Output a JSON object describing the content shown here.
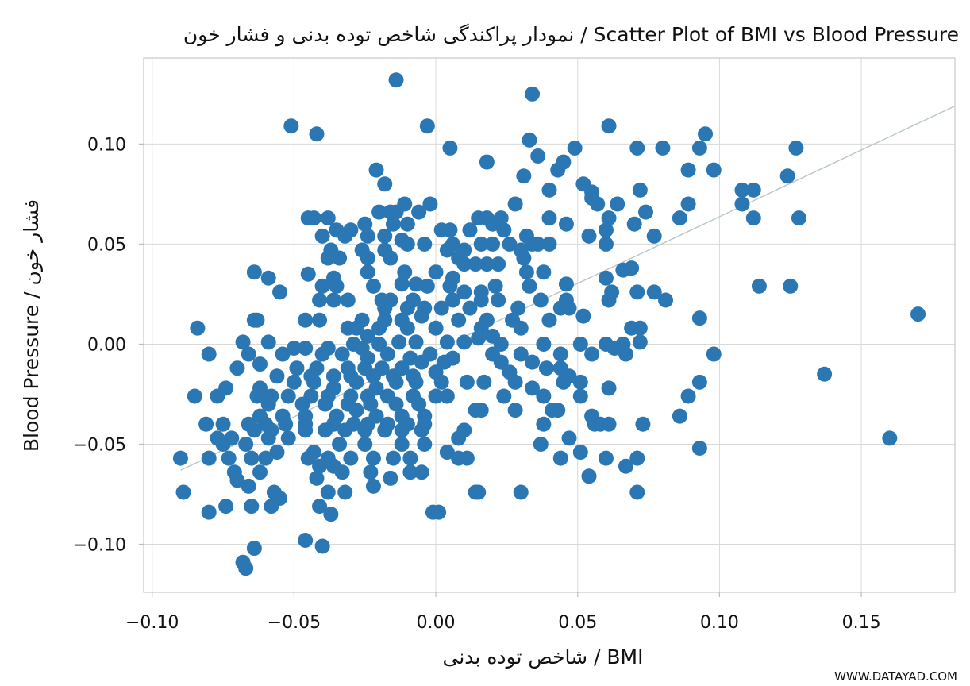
{
  "chart_data": {
    "type": "scatter",
    "title": "نمودار پراکندگی شاخص توده بدنی و فشار خون / Scatter Plot of BMI vs Blood Pressure",
    "xlabel": "شاخص توده بدنی / BMI",
    "ylabel": "Blood Pressure / فشار خون",
    "xlim": [
      -0.103,
      0.183
    ],
    "ylim": [
      -0.124,
      0.143
    ],
    "x_ticks": [
      -0.1,
      -0.05,
      0.0,
      0.05,
      0.1,
      0.15
    ],
    "x_tick_labels": [
      "−0.10",
      "−0.05",
      "0.00",
      "0.05",
      "0.10",
      "0.15"
    ],
    "y_ticks": [
      -0.1,
      -0.05,
      0.0,
      0.05,
      0.1
    ],
    "y_tick_labels": [
      "−0.10",
      "−0.05",
      "0.00",
      "0.05",
      "0.10"
    ],
    "grid": true,
    "marker_color": "#2a77b4",
    "trend_color": "#b9c7c6",
    "trend_line": {
      "x": [
        -0.09,
        0.183
      ],
      "y": [
        -0.063,
        0.119
      ]
    },
    "points": [
      [
        -0.014,
        0.132
      ],
      [
        0.034,
        0.125
      ],
      [
        -0.051,
        0.109
      ],
      [
        -0.042,
        0.105
      ],
      [
        -0.003,
        0.109
      ],
      [
        0.061,
        0.109
      ],
      [
        0.095,
        0.105
      ],
      [
        0.033,
        0.102
      ],
      [
        0.005,
        0.098
      ],
      [
        0.036,
        0.094
      ],
      [
        0.049,
        0.098
      ],
      [
        0.071,
        0.098
      ],
      [
        0.08,
        0.098
      ],
      [
        0.093,
        0.098
      ],
      [
        0.127,
        0.098
      ],
      [
        0.018,
        0.091
      ],
      [
        0.043,
        0.087
      ],
      [
        0.045,
        0.091
      ],
      [
        0.031,
        0.084
      ],
      [
        -0.021,
        0.087
      ],
      [
        0.089,
        0.087
      ],
      [
        0.098,
        0.087
      ],
      [
        0.124,
        0.084
      ],
      [
        -0.018,
        0.08
      ],
      [
        0.052,
        0.08
      ],
      [
        0.055,
        0.076
      ],
      [
        0.04,
        0.077
      ],
      [
        0.072,
        0.077
      ],
      [
        0.108,
        0.077
      ],
      [
        0.112,
        0.077
      ],
      [
        0.028,
        0.07
      ],
      [
        0.057,
        0.07
      ],
      [
        0.055,
        0.073
      ],
      [
        0.064,
        0.07
      ],
      [
        0.089,
        0.07
      ],
      [
        0.108,
        0.07
      ],
      [
        -0.016,
        0.066
      ],
      [
        -0.011,
        0.07
      ],
      [
        -0.002,
        0.07
      ],
      [
        0.04,
        0.063
      ],
      [
        0.061,
        0.063
      ],
      [
        0.074,
        0.066
      ],
      [
        0.086,
        0.063
      ],
      [
        0.112,
        0.063
      ],
      [
        0.128,
        0.063
      ],
      [
        -0.043,
        0.063
      ],
      [
        -0.045,
        0.063
      ],
      [
        -0.038,
        0.063
      ],
      [
        -0.02,
        0.066
      ],
      [
        -0.014,
        0.066
      ],
      [
        -0.006,
        0.066
      ],
      [
        0.015,
        0.063
      ],
      [
        0.018,
        0.063
      ],
      [
        0.023,
        0.063
      ],
      [
        -0.035,
        0.057
      ],
      [
        -0.03,
        0.057
      ],
      [
        -0.025,
        0.06
      ],
      [
        -0.015,
        0.06
      ],
      [
        -0.01,
        0.06
      ],
      [
        0.002,
        0.057
      ],
      [
        0.005,
        0.057
      ],
      [
        0.012,
        0.057
      ],
      [
        0.02,
        0.06
      ],
      [
        0.024,
        0.057
      ],
      [
        0.046,
        0.06
      ],
      [
        0.07,
        0.06
      ],
      [
        0.06,
        0.057
      ],
      [
        -0.04,
        0.054
      ],
      [
        -0.032,
        0.054
      ],
      [
        -0.024,
        0.054
      ],
      [
        -0.018,
        0.054
      ],
      [
        -0.012,
        0.052
      ],
      [
        -0.004,
        0.05
      ],
      [
        0.006,
        0.05
      ],
      [
        0.016,
        0.05
      ],
      [
        0.026,
        0.05
      ],
      [
        0.032,
        0.054
      ],
      [
        0.036,
        0.05
      ],
      [
        0.04,
        0.05
      ],
      [
        0.054,
        0.054
      ],
      [
        0.06,
        0.05
      ],
      [
        0.077,
        0.054
      ],
      [
        -0.037,
        0.047
      ],
      [
        -0.026,
        0.047
      ],
      [
        -0.018,
        0.047
      ],
      [
        -0.01,
        0.05
      ],
      [
        0.004,
        0.047
      ],
      [
        0.01,
        0.047
      ],
      [
        0.02,
        0.05
      ],
      [
        0.03,
        0.047
      ],
      [
        0.034,
        0.05
      ],
      [
        -0.038,
        0.043
      ],
      [
        -0.034,
        0.043
      ],
      [
        -0.024,
        0.043
      ],
      [
        -0.016,
        0.043
      ],
      [
        0.008,
        0.043
      ],
      [
        0.014,
        0.04
      ],
      [
        0.018,
        0.04
      ],
      [
        0.031,
        0.043
      ],
      [
        -0.064,
        0.036
      ],
      [
        -0.059,
        0.033
      ],
      [
        -0.045,
        0.035
      ],
      [
        -0.036,
        0.033
      ],
      [
        -0.024,
        0.036
      ],
      [
        -0.011,
        0.036
      ],
      [
        0.0,
        0.036
      ],
      [
        0.006,
        0.033
      ],
      [
        0.01,
        0.04
      ],
      [
        0.022,
        0.04
      ],
      [
        0.032,
        0.036
      ],
      [
        0.038,
        0.036
      ],
      [
        0.06,
        0.033
      ],
      [
        0.066,
        0.037
      ],
      [
        0.069,
        0.038
      ],
      [
        -0.055,
        0.026
      ],
      [
        -0.04,
        0.029
      ],
      [
        -0.035,
        0.029
      ],
      [
        -0.022,
        0.029
      ],
      [
        -0.012,
        0.03
      ],
      [
        -0.007,
        0.03
      ],
      [
        -0.003,
        0.029
      ],
      [
        0.005,
        0.029
      ],
      [
        0.01,
        0.026
      ],
      [
        0.016,
        0.026
      ],
      [
        0.021,
        0.029
      ],
      [
        0.033,
        0.029
      ],
      [
        0.046,
        0.03
      ],
      [
        0.062,
        0.026
      ],
      [
        0.071,
        0.026
      ],
      [
        0.114,
        0.029
      ],
      [
        0.125,
        0.029
      ],
      [
        -0.041,
        0.022
      ],
      [
        -0.036,
        0.022
      ],
      [
        -0.031,
        0.022
      ],
      [
        -0.019,
        0.022
      ],
      [
        -0.016,
        0.022
      ],
      [
        -0.008,
        0.022
      ],
      [
        0.006,
        0.022
      ],
      [
        0.016,
        0.022
      ],
      [
        0.022,
        0.022
      ],
      [
        0.037,
        0.022
      ],
      [
        0.046,
        0.022
      ],
      [
        0.061,
        0.022
      ],
      [
        0.077,
        0.026
      ],
      [
        0.081,
        0.022
      ],
      [
        -0.01,
        0.018
      ],
      [
        -0.004,
        0.018
      ],
      [
        0.002,
        0.018
      ],
      [
        0.012,
        0.018
      ],
      [
        0.029,
        0.018
      ],
      [
        0.044,
        0.018
      ],
      [
        0.047,
        0.018
      ],
      [
        -0.018,
        0.018
      ],
      [
        -0.064,
        0.012
      ],
      [
        -0.063,
        0.012
      ],
      [
        -0.046,
        0.012
      ],
      [
        -0.041,
        0.012
      ],
      [
        -0.026,
        0.012
      ],
      [
        -0.018,
        0.012
      ],
      [
        -0.012,
        0.012
      ],
      [
        -0.005,
        0.014
      ],
      [
        0.008,
        0.012
      ],
      [
        0.018,
        0.012
      ],
      [
        0.027,
        0.012
      ],
      [
        0.04,
        0.012
      ],
      [
        0.052,
        0.014
      ],
      [
        0.093,
        0.013
      ],
      [
        0.17,
        0.015
      ],
      [
        -0.084,
        0.008
      ],
      [
        -0.031,
        0.008
      ],
      [
        -0.028,
        0.008
      ],
      [
        -0.02,
        0.008
      ],
      [
        -0.01,
        0.008
      ],
      [
        0.0,
        0.008
      ],
      [
        0.016,
        0.008
      ],
      [
        0.03,
        0.008
      ],
      [
        0.069,
        0.008
      ],
      [
        0.072,
        0.008
      ],
      [
        -0.024,
        0.004
      ],
      [
        0.02,
        0.004
      ],
      [
        -0.068,
        0.001
      ],
      [
        -0.059,
        0.001
      ],
      [
        -0.05,
        -0.002
      ],
      [
        -0.046,
        -0.002
      ],
      [
        -0.038,
        -0.002
      ],
      [
        -0.029,
        0.0
      ],
      [
        -0.026,
        -0.002
      ],
      [
        -0.02,
        0.0
      ],
      [
        -0.013,
        0.001
      ],
      [
        -0.007,
        0.001
      ],
      [
        0.004,
        0.001
      ],
      [
        0.01,
        0.001
      ],
      [
        0.015,
        0.003
      ],
      [
        0.023,
        0.0
      ],
      [
        0.038,
        0.0
      ],
      [
        0.051,
        0.0
      ],
      [
        0.06,
        0.0
      ],
      [
        0.066,
        0.0
      ],
      [
        0.072,
        0.001
      ],
      [
        -0.08,
        -0.005
      ],
      [
        -0.066,
        -0.005
      ],
      [
        -0.054,
        -0.005
      ],
      [
        -0.04,
        -0.005
      ],
      [
        -0.033,
        -0.005
      ],
      [
        -0.024,
        -0.007
      ],
      [
        -0.017,
        -0.005
      ],
      [
        -0.009,
        -0.007
      ],
      [
        -0.002,
        -0.005
      ],
      [
        0.006,
        -0.007
      ],
      [
        0.02,
        -0.005
      ],
      [
        0.03,
        -0.005
      ],
      [
        0.044,
        -0.005
      ],
      [
        0.055,
        -0.005
      ],
      [
        0.063,
        -0.002
      ],
      [
        0.067,
        -0.005
      ],
      [
        0.098,
        -0.005
      ],
      [
        -0.07,
        -0.012
      ],
      [
        -0.062,
        -0.01
      ],
      [
        -0.049,
        -0.012
      ],
      [
        -0.042,
        -0.012
      ],
      [
        -0.031,
        -0.012
      ],
      [
        -0.025,
        -0.012
      ],
      [
        -0.019,
        -0.012
      ],
      [
        -0.012,
        -0.012
      ],
      [
        -0.005,
        -0.009
      ],
      [
        0.003,
        -0.009
      ],
      [
        0.023,
        -0.009
      ],
      [
        0.034,
        -0.009
      ],
      [
        0.039,
        -0.012
      ],
      [
        0.044,
        -0.012
      ],
      [
        -0.056,
        -0.016
      ],
      [
        -0.044,
        -0.016
      ],
      [
        -0.036,
        -0.016
      ],
      [
        -0.03,
        -0.016
      ],
      [
        -0.022,
        -0.016
      ],
      [
        -0.015,
        -0.016
      ],
      [
        -0.008,
        -0.016
      ],
      [
        0.0,
        -0.014
      ],
      [
        0.026,
        -0.014
      ],
      [
        0.047,
        -0.016
      ],
      [
        0.051,
        -0.019
      ],
      [
        0.137,
        -0.015
      ],
      [
        0.093,
        -0.019
      ],
      [
        -0.074,
        -0.022
      ],
      [
        -0.062,
        -0.022
      ],
      [
        -0.05,
        -0.019
      ],
      [
        -0.043,
        -0.019
      ],
      [
        -0.036,
        -0.022
      ],
      [
        -0.028,
        -0.019
      ],
      [
        -0.021,
        -0.022
      ],
      [
        -0.014,
        -0.019
      ],
      [
        -0.007,
        -0.019
      ],
      [
        0.002,
        -0.019
      ],
      [
        0.011,
        -0.019
      ],
      [
        0.017,
        -0.019
      ],
      [
        0.028,
        -0.019
      ],
      [
        0.034,
        -0.022
      ],
      [
        0.045,
        -0.019
      ],
      [
        0.061,
        -0.022
      ],
      [
        -0.085,
        -0.026
      ],
      [
        -0.077,
        -0.026
      ],
      [
        -0.063,
        -0.026
      ],
      [
        -0.058,
        -0.026
      ],
      [
        -0.052,
        -0.026
      ],
      [
        -0.044,
        -0.026
      ],
      [
        -0.038,
        -0.026
      ],
      [
        -0.03,
        -0.026
      ],
      [
        -0.024,
        -0.026
      ],
      [
        -0.017,
        -0.026
      ],
      [
        -0.008,
        -0.026
      ],
      [
        0.0,
        -0.026
      ],
      [
        0.004,
        -0.026
      ],
      [
        0.024,
        -0.026
      ],
      [
        0.038,
        -0.026
      ],
      [
        0.051,
        -0.026
      ],
      [
        0.089,
        -0.026
      ],
      [
        -0.059,
        -0.03
      ],
      [
        -0.047,
        -0.03
      ],
      [
        -0.039,
        -0.03
      ],
      [
        -0.031,
        -0.03
      ],
      [
        -0.023,
        -0.03
      ],
      [
        -0.014,
        -0.03
      ],
      [
        -0.006,
        -0.03
      ],
      [
        0.014,
        -0.033
      ],
      [
        0.016,
        -0.033
      ],
      [
        0.028,
        -0.033
      ],
      [
        0.041,
        -0.033
      ],
      [
        0.043,
        -0.033
      ],
      [
        -0.062,
        -0.036
      ],
      [
        -0.054,
        -0.036
      ],
      [
        -0.046,
        -0.036
      ],
      [
        -0.035,
        -0.036
      ],
      [
        -0.028,
        -0.033
      ],
      [
        -0.021,
        -0.036
      ],
      [
        -0.012,
        -0.036
      ],
      [
        -0.004,
        -0.036
      ],
      [
        0.086,
        -0.036
      ],
      [
        0.055,
        -0.036
      ],
      [
        -0.081,
        -0.04
      ],
      [
        -0.075,
        -0.04
      ],
      [
        -0.066,
        -0.04
      ],
      [
        -0.06,
        -0.04
      ],
      [
        -0.053,
        -0.04
      ],
      [
        -0.046,
        -0.04
      ],
      [
        -0.036,
        -0.04
      ],
      [
        -0.029,
        -0.04
      ],
      [
        -0.024,
        -0.04
      ],
      [
        -0.017,
        -0.04
      ],
      [
        -0.01,
        -0.04
      ],
      [
        -0.004,
        -0.04
      ],
      [
        0.038,
        -0.04
      ],
      [
        0.056,
        -0.04
      ],
      [
        0.058,
        -0.04
      ],
      [
        0.061,
        -0.04
      ],
      [
        0.073,
        -0.04
      ],
      [
        -0.077,
        -0.047
      ],
      [
        -0.072,
        -0.047
      ],
      [
        -0.064,
        -0.043
      ],
      [
        -0.058,
        -0.043
      ],
      [
        -0.046,
        -0.043
      ],
      [
        -0.039,
        -0.043
      ],
      [
        -0.032,
        -0.043
      ],
      [
        -0.025,
        -0.043
      ],
      [
        -0.018,
        -0.043
      ],
      [
        -0.012,
        -0.043
      ],
      [
        -0.005,
        -0.043
      ],
      [
        0.01,
        -0.043
      ],
      [
        -0.075,
        -0.05
      ],
      [
        -0.067,
        -0.05
      ],
      [
        -0.059,
        -0.047
      ],
      [
        -0.052,
        -0.047
      ],
      [
        -0.034,
        -0.05
      ],
      [
        -0.025,
        -0.05
      ],
      [
        -0.012,
        -0.05
      ],
      [
        -0.004,
        -0.05
      ],
      [
        0.008,
        -0.047
      ],
      [
        0.037,
        -0.05
      ],
      [
        0.047,
        -0.047
      ],
      [
        0.16,
        -0.047
      ],
      [
        -0.09,
        -0.057
      ],
      [
        -0.08,
        -0.057
      ],
      [
        -0.073,
        -0.057
      ],
      [
        -0.065,
        -0.057
      ],
      [
        -0.06,
        -0.057
      ],
      [
        -0.056,
        -0.054
      ],
      [
        -0.045,
        -0.057
      ],
      [
        -0.043,
        -0.054
      ],
      [
        -0.038,
        -0.057
      ],
      [
        -0.03,
        -0.057
      ],
      [
        -0.022,
        -0.057
      ],
      [
        -0.015,
        -0.057
      ],
      [
        -0.009,
        -0.057
      ],
      [
        0.004,
        -0.054
      ],
      [
        0.008,
        -0.057
      ],
      [
        0.011,
        -0.057
      ],
      [
        0.044,
        -0.057
      ],
      [
        0.051,
        -0.054
      ],
      [
        0.06,
        -0.057
      ],
      [
        0.071,
        -0.057
      ],
      [
        0.093,
        -0.052
      ],
      [
        -0.071,
        -0.064
      ],
      [
        -0.062,
        -0.064
      ],
      [
        -0.041,
        -0.061
      ],
      [
        -0.036,
        -0.061
      ],
      [
        -0.033,
        -0.064
      ],
      [
        -0.023,
        -0.064
      ],
      [
        -0.016,
        -0.067
      ],
      [
        -0.009,
        -0.064
      ],
      [
        -0.005,
        -0.064
      ],
      [
        0.054,
        -0.066
      ],
      [
        0.067,
        -0.061
      ],
      [
        -0.07,
        -0.068
      ],
      [
        -0.066,
        -0.071
      ],
      [
        -0.057,
        -0.074
      ],
      [
        -0.042,
        -0.067
      ],
      [
        -0.038,
        -0.074
      ],
      [
        -0.032,
        -0.074
      ],
      [
        -0.022,
        -0.071
      ],
      [
        0.014,
        -0.074
      ],
      [
        0.015,
        -0.074
      ],
      [
        0.03,
        -0.074
      ],
      [
        0.071,
        -0.074
      ],
      [
        -0.089,
        -0.074
      ],
      [
        -0.074,
        -0.081
      ],
      [
        -0.058,
        -0.081
      ],
      [
        -0.041,
        -0.081
      ],
      [
        -0.037,
        -0.085
      ],
      [
        -0.065,
        -0.081
      ],
      [
        -0.08,
        -0.084
      ],
      [
        -0.055,
        -0.077
      ],
      [
        -0.001,
        -0.084
      ],
      [
        0.001,
        -0.084
      ],
      [
        -0.046,
        -0.098
      ],
      [
        -0.04,
        -0.101
      ],
      [
        -0.064,
        -0.102
      ],
      [
        -0.068,
        -0.109
      ],
      [
        -0.067,
        -0.112
      ]
    ]
  },
  "watermark": "WWW.DATAYAD.COM"
}
